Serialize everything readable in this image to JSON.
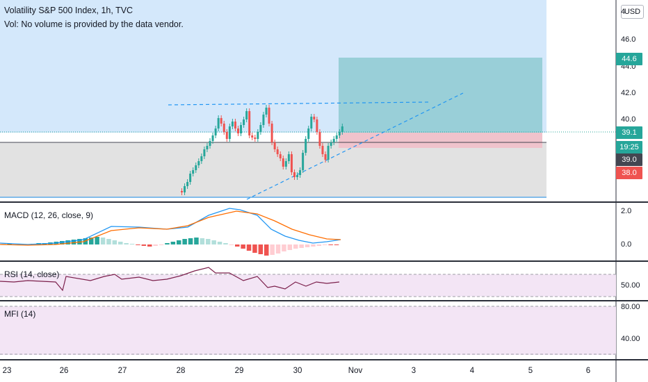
{
  "header": {
    "title": "Volatility S&P 500 Index, 1h, TVC",
    "volume_note": "Vol: No volume is provided by the data vendor.",
    "currency_button": "USD"
  },
  "price_axis": {
    "ticks": [
      "4",
      "46.0",
      "44.0",
      "42.0",
      "40.0"
    ],
    "tags": {
      "target": "44.6",
      "last": "39.1",
      "countdown": "19:25",
      "line": "39.0",
      "stop": "38.0"
    }
  },
  "macd": {
    "title": "MACD (12, 26, close, 9)",
    "ticks": [
      "2.0",
      "0.0"
    ]
  },
  "rsi": {
    "title": "RSI (14, close)",
    "ticks": [
      "50.00"
    ]
  },
  "mfi": {
    "title": "MFI (14)",
    "ticks": [
      "80.00",
      "40.00"
    ]
  },
  "time_axis": {
    "labels": [
      "23",
      "26",
      "27",
      "28",
      "29",
      "30",
      "Nov",
      "3",
      "4",
      "5",
      "6"
    ]
  },
  "colors": {
    "up": "#26a69a",
    "down": "#ef5350",
    "zone_blue": "#d1e6fa",
    "target_box": "#8fcfd6",
    "stop_box": "#f2c7cd",
    "trend": "#2196f3",
    "macd_line": "#2196f3",
    "signal_line": "#ff6d00",
    "rsi_line": "#7b1f4b",
    "pane_bg": "#f3e5f5"
  }
}
